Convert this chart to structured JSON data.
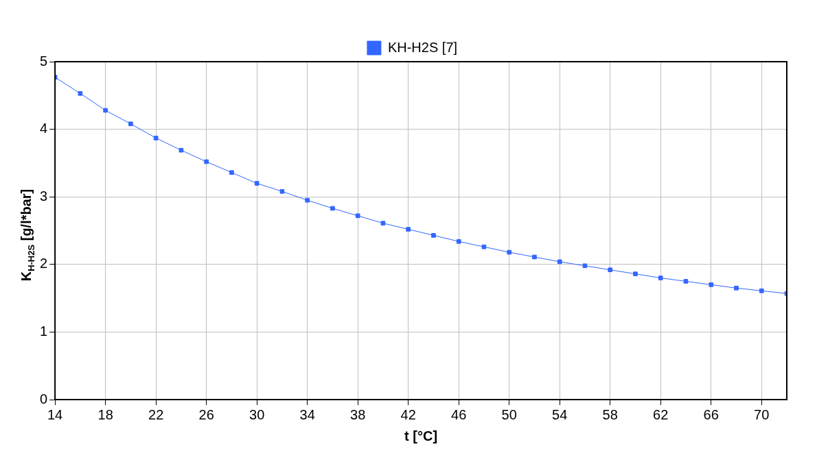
{
  "chart_data": {
    "type": "line",
    "xlabel": "t [°C]",
    "ylabel": "K$_{H-H2S}$ [g/l*bar]",
    "x": [
      14,
      16,
      18,
      20,
      22,
      24,
      26,
      28,
      30,
      32,
      34,
      36,
      38,
      40,
      42,
      44,
      46,
      48,
      50,
      52,
      54,
      56,
      58,
      60,
      62,
      64,
      66,
      68,
      70,
      72
    ],
    "series": [
      {
        "name": "KH-H2S [7]",
        "color": "#3366ff",
        "values": [
          4.77,
          4.53,
          4.28,
          4.08,
          3.87,
          3.69,
          3.52,
          3.36,
          3.2,
          3.08,
          2.95,
          2.83,
          2.72,
          2.61,
          2.52,
          2.43,
          2.34,
          2.26,
          2.18,
          2.11,
          2.04,
          1.98,
          1.92,
          1.86,
          1.8,
          1.75,
          1.7,
          1.65,
          1.61,
          1.57
        ]
      }
    ],
    "xlim": [
      14,
      72
    ],
    "xticks": [
      14,
      18,
      22,
      26,
      30,
      34,
      38,
      42,
      46,
      50,
      54,
      58,
      62,
      66,
      70
    ],
    "ylim": [
      0,
      5
    ],
    "yticks": [
      0,
      1,
      2,
      3,
      4,
      5
    ],
    "grid": true,
    "legend": "top",
    "marker": "square",
    "line_style": "solid"
  }
}
